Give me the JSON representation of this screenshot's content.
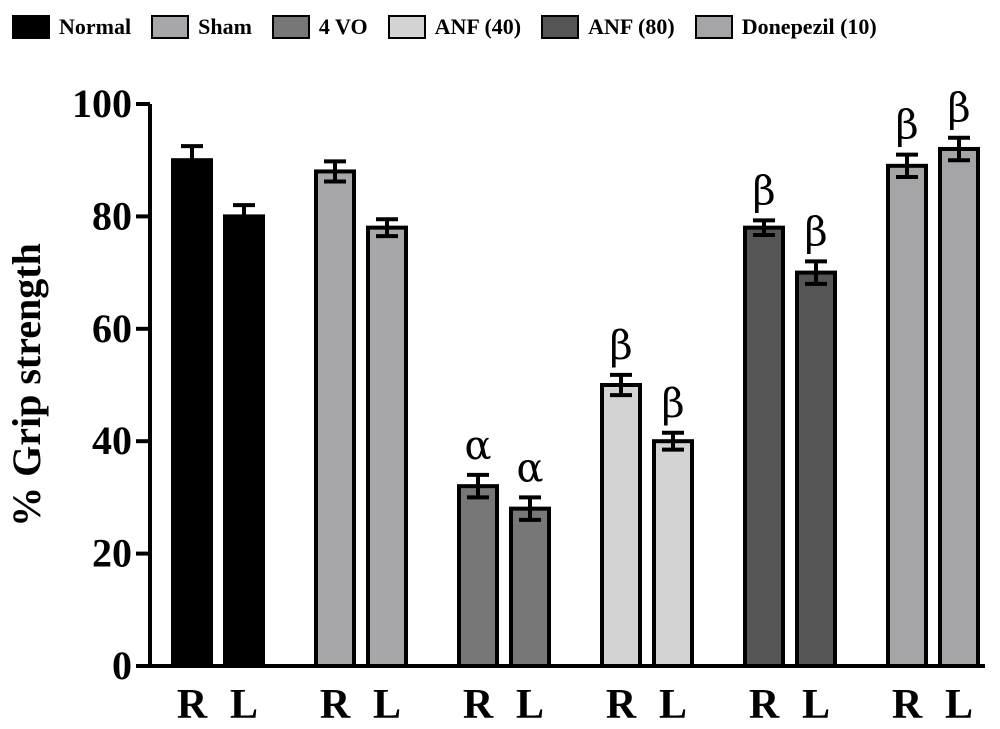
{
  "chart_data": {
    "type": "bar",
    "title": "",
    "xlabel": "",
    "ylabel": "% Grip strength",
    "ylim": [
      0,
      100
    ],
    "yticks": [
      0,
      20,
      40,
      60,
      80,
      100
    ],
    "grid": false,
    "legend_placement": "top",
    "groups": [
      {
        "name": "Normal",
        "color": "#000000",
        "bars": [
          {
            "label": "R",
            "value": 90,
            "error": 2.5,
            "annotation": ""
          },
          {
            "label": "L",
            "value": 80,
            "error": 2.0,
            "annotation": ""
          }
        ]
      },
      {
        "name": "Sham",
        "color": "#a7a7a9",
        "bars": [
          {
            "label": "R",
            "value": 88,
            "error": 1.8,
            "annotation": ""
          },
          {
            "label": "L",
            "value": 78,
            "error": 1.5,
            "annotation": ""
          }
        ]
      },
      {
        "name": "4 VO",
        "color": "#777777",
        "bars": [
          {
            "label": "R",
            "value": 32,
            "error": 2.0,
            "annotation": "α"
          },
          {
            "label": "L",
            "value": 28,
            "error": 2.0,
            "annotation": "α"
          }
        ]
      },
      {
        "name": "ANF (40)",
        "color": "#d3d3d3",
        "bars": [
          {
            "label": "R",
            "value": 50,
            "error": 1.8,
            "annotation": "β"
          },
          {
            "label": "L",
            "value": 40,
            "error": 1.5,
            "annotation": "β"
          }
        ]
      },
      {
        "name": "ANF (80)",
        "color": "#555555",
        "bars": [
          {
            "label": "R",
            "value": 78,
            "error": 1.3,
            "annotation": "β"
          },
          {
            "label": "L",
            "value": 70,
            "error": 2.0,
            "annotation": "β"
          }
        ]
      },
      {
        "name": "Donepezil (10)",
        "color": "#a5a5a7",
        "bars": [
          {
            "label": "R",
            "value": 89,
            "error": 2.0,
            "annotation": "β"
          },
          {
            "label": "L",
            "value": 92,
            "error": 2.0,
            "annotation": "β"
          }
        ]
      }
    ]
  }
}
